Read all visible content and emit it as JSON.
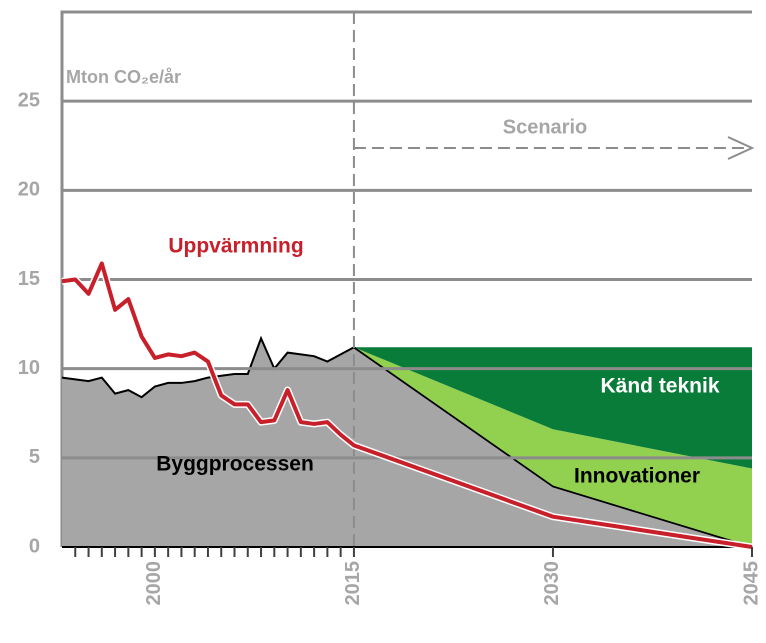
{
  "chart_data": {
    "type": "stacked_area_line",
    "annotations": {
      "unit": "Mton CO₂e/år",
      "scenario": "Scenario"
    },
    "x": [
      1993,
      1994,
      1995,
      1996,
      1997,
      1998,
      1999,
      2000,
      2001,
      2002,
      2003,
      2004,
      2005,
      2006,
      2007,
      2008,
      2009,
      2010,
      2011,
      2012,
      2013,
      2014,
      2015,
      2030,
      2045
    ],
    "series": [
      {
        "name": "Byggprocessen",
        "kind": "area",
        "color": "#a6a6a6",
        "label_color": "#000000",
        "values": [
          9.5,
          9.4,
          9.3,
          9.5,
          8.6,
          8.8,
          8.4,
          9.0,
          9.2,
          9.2,
          9.3,
          9.5,
          9.6,
          9.7,
          9.7,
          11.7,
          10.0,
          10.9,
          10.8,
          10.7,
          10.4,
          10.8,
          11.2,
          3.4,
          0
        ]
      },
      {
        "name": "Innovationer",
        "kind": "area",
        "color": "#92d050",
        "label_color": "#000000",
        "values": [
          null,
          null,
          null,
          null,
          null,
          null,
          null,
          null,
          null,
          null,
          null,
          null,
          null,
          null,
          null,
          null,
          null,
          null,
          null,
          null,
          null,
          null,
          0,
          3.2,
          4.4
        ]
      },
      {
        "name": "Känd teknik",
        "kind": "area",
        "color": "#0a7c3a",
        "label_color": "#ffffff",
        "values": [
          null,
          null,
          null,
          null,
          null,
          null,
          null,
          null,
          null,
          null,
          null,
          null,
          null,
          null,
          null,
          null,
          null,
          null,
          null,
          null,
          null,
          null,
          0,
          4.6,
          6.8
        ]
      },
      {
        "name": "Uppvärmning",
        "kind": "line",
        "color": "#c8202a",
        "label_color": "#c8202a",
        "values": [
          14.9,
          15.0,
          14.2,
          15.9,
          13.3,
          13.9,
          11.8,
          10.6,
          10.8,
          10.7,
          10.9,
          10.4,
          8.5,
          8.0,
          8.0,
          7.0,
          7.1,
          8.8,
          7.0,
          6.9,
          7.0,
          6.3,
          5.7,
          1.7,
          0
        ]
      }
    ],
    "scenario_start": 2015,
    "xlim": [
      1993,
      2045
    ],
    "xticks": [
      2000,
      2015,
      2030,
      2045
    ],
    "xminorticks": [
      1994,
      1995,
      1996,
      1997,
      1998,
      1999,
      2001,
      2002,
      2003,
      2004,
      2005,
      2006,
      2007,
      2008,
      2009,
      2010,
      2011,
      2012,
      2013,
      2014
    ],
    "ylim": [
      0,
      30
    ],
    "yticks": [
      0,
      5,
      10,
      15,
      20,
      25
    ],
    "grid": true
  }
}
